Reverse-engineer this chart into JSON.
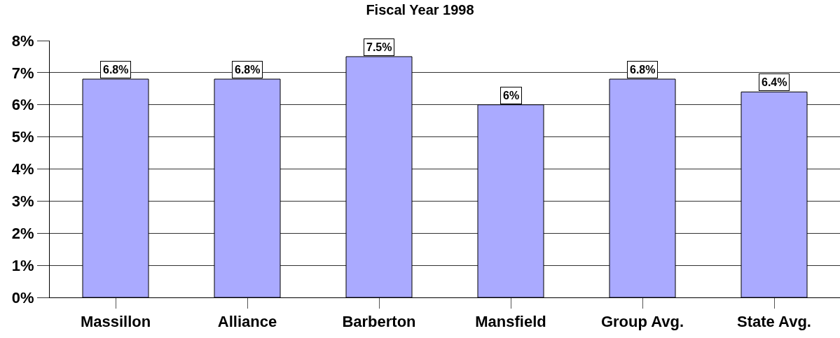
{
  "chart_data": {
    "type": "bar",
    "title": "Fiscal Year 1998",
    "categories": [
      "Massillon",
      "Alliance",
      "Barberton",
      "Mansfield",
      "Group Avg.",
      "State Avg."
    ],
    "values": [
      6.8,
      6.8,
      7.5,
      6,
      6.8,
      6.4
    ],
    "value_labels": [
      "6.8%",
      "6.8%",
      "7.5%",
      "6%",
      "6.8%",
      "6.4%"
    ],
    "color": "#aaaaff",
    "ylim": [
      0,
      8
    ],
    "yticks": [
      {
        "value": 0,
        "label": "0%"
      },
      {
        "value": 1,
        "label": "1%"
      },
      {
        "value": 2,
        "label": "2%"
      },
      {
        "value": 3,
        "label": "3%"
      },
      {
        "value": 4,
        "label": "4%"
      },
      {
        "value": 5,
        "label": "5%"
      },
      {
        "value": 6,
        "label": "6%"
      },
      {
        "value": 7,
        "label": "7%"
      },
      {
        "value": 8,
        "label": "8%"
      }
    ],
    "grid": "y"
  }
}
